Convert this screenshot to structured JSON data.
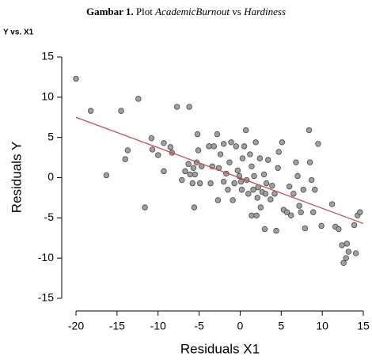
{
  "chart_data": {
    "type": "scatter",
    "figure_label": "Gambar 1.",
    "title": "Plot",
    "title_y_var": "AcademicBurnout",
    "title_connector": "vs",
    "title_x_var": "Hardiness",
    "subtitle": "Y vs. X1",
    "x_label": "Residuals X1",
    "y_label": "Residuals Y",
    "xlim": [
      -20,
      15
    ],
    "ylim": [
      -15,
      15
    ],
    "xticks": [
      -20,
      -15,
      -10,
      -5,
      0,
      5,
      10,
      15
    ],
    "yticks": [
      -15,
      -10,
      -5,
      0,
      5,
      10,
      15
    ],
    "grid": false,
    "point_color": "#a0a0a0",
    "x": [
      -20,
      -18.2,
      -14.5,
      -12.4,
      -16.3,
      -13.7,
      -14,
      -11.6,
      -10.8,
      -10.7,
      -10,
      -9.3,
      -9.3,
      -8.5,
      -8.3,
      -7.7,
      -6.2,
      -7.1,
      -6.7,
      -6.3,
      -6.1,
      -5.8,
      -5.7,
      -5.5,
      -5.6,
      -5.3,
      -5.2,
      -5.1,
      -4.9,
      -4.7,
      -3.8,
      -3.2,
      -3.6,
      -3.4,
      -2.8,
      -2.7,
      -2.6,
      -2.4,
      -2,
      -2,
      -1.7,
      -1.5,
      -1.3,
      -1.1,
      -0.9,
      -0.7,
      -0.5,
      -0.3,
      -0.1,
      0.1,
      0.2,
      0.3,
      0.5,
      0.7,
      0.8,
      1,
      1.2,
      1.4,
      1.4,
      1.6,
      1.7,
      1.9,
      2,
      2.1,
      2.2,
      2.4,
      2.5,
      2.7,
      2.9,
      3,
      3.1,
      3.2,
      3.4,
      3.7,
      3.9,
      4.2,
      4.4,
      4.6,
      4.7,
      5.1,
      5.3,
      5.7,
      6,
      6.2,
      6.5,
      6.8,
      7,
      7.2,
      7.4,
      7.7,
      7.9,
      8.4,
      8.5,
      8.7,
      8.9,
      9.1,
      9.5,
      9.9,
      11.2,
      11.6,
      12,
      12.4,
      12.6,
      12.9,
      13,
      13.2,
      13.9,
      14.1,
      14.3,
      14.6
    ],
    "y": [
      12.3,
      8.3,
      8.3,
      9.8,
      0.3,
      3.4,
      2.3,
      -3.7,
      4.9,
      3.5,
      2.8,
      0.8,
      4.3,
      3.8,
      3.1,
      8.8,
      8.8,
      -0.3,
      0.8,
      1.7,
      0.4,
      -0.7,
      1.2,
      0.4,
      -3.7,
      1.9,
      5.4,
      3.4,
      -0.7,
      1.4,
      3.9,
      3.9,
      -0.7,
      1.4,
      5.4,
      -2.8,
      1.2,
      2.9,
      4.2,
      -0.5,
      0.5,
      -1.5,
      1.9,
      4.4,
      -2.8,
      -0.7,
      3.9,
      0.9,
      0.2,
      -0.5,
      -1.5,
      2.4,
      3.9,
      5.9,
      -0.3,
      -2,
      2.9,
      -4.7,
      1.4,
      -1.5,
      0.2,
      4.4,
      -4.7,
      -2.5,
      -1.2,
      2.4,
      -3.7,
      -1.8,
      0.4,
      -6.4,
      -2,
      -0.7,
      2.2,
      -2.7,
      -1,
      -2,
      -6.6,
      1.2,
      3.2,
      4.4,
      -4,
      -4.3,
      -1.1,
      -4.7,
      -2,
      1.9,
      0.2,
      -3.5,
      -4.3,
      -1.5,
      -6.3,
      5.9,
      1.9,
      -0.3,
      -4.3,
      -1.5,
      4.2,
      -6,
      -3.3,
      -6.1,
      -6.4,
      -8.4,
      -10.6,
      -10,
      -8.2,
      -9.2,
      -5.9,
      -9.4,
      -4.7,
      -4.3
    ],
    "fit_line": {
      "color": "#c0504d",
      "x": [
        -20,
        15
      ],
      "y": [
        7.5,
        -5.7
      ]
    }
  }
}
